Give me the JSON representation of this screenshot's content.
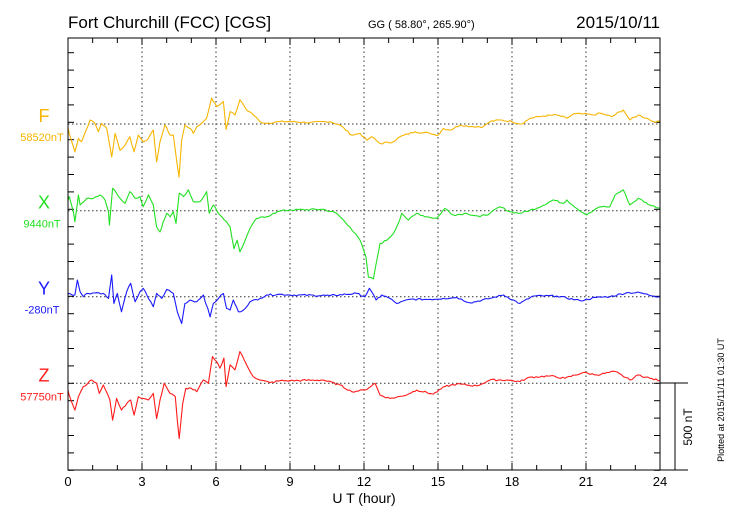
{
  "header": {
    "station": "Fort Churchill (FCC)  [CGS]",
    "coords": "GG ( 58.80°, 265.90°)",
    "date": "2015/10/11"
  },
  "footer": {
    "plotted": "Plotted at 2015/11/11 01:30 UT"
  },
  "chart_data": {
    "type": "line",
    "title": "Fort Churchill (FCC)  [CGS]",
    "xlabel": "U T (hour)",
    "xlim": [
      0,
      24
    ],
    "xticks": [
      "0",
      "3",
      "6",
      "9",
      "12",
      "15",
      "18",
      "21",
      "24"
    ],
    "grid": "dotted vertical lines every 3 hours, dotted baseline for each component",
    "scale_bar": {
      "label": "500 nT",
      "value_nT": 500
    },
    "series": [
      {
        "name": "F",
        "baseline_label": "58520nT",
        "color": "#f7b500",
        "points": [
          [
            0,
            -20
          ],
          [
            0.05,
            -54
          ],
          [
            0.28,
            -160
          ],
          [
            0.42,
            -83
          ],
          [
            0.55,
            -102
          ],
          [
            0.89,
            23
          ],
          [
            1.09,
            4
          ],
          [
            1.23,
            -44
          ],
          [
            1.36,
            4
          ],
          [
            1.57,
            -25
          ],
          [
            1.77,
            -189
          ],
          [
            1.91,
            -54
          ],
          [
            2.11,
            -151
          ],
          [
            2.31,
            -122
          ],
          [
            2.51,
            -73
          ],
          [
            2.68,
            -160
          ],
          [
            2.85,
            -64
          ],
          [
            3.05,
            -102
          ],
          [
            3.26,
            -83
          ],
          [
            3.46,
            -35
          ],
          [
            3.59,
            -218
          ],
          [
            3.73,
            -102
          ],
          [
            3.93,
            -6
          ],
          [
            4.14,
            -64
          ],
          [
            4.27,
            -64
          ],
          [
            4.41,
            -218
          ],
          [
            4.5,
            -305
          ],
          [
            4.61,
            -93
          ],
          [
            4.74,
            -6
          ],
          [
            4.95,
            -25
          ],
          [
            5.08,
            -54
          ],
          [
            5.22,
            -15
          ],
          [
            5.42,
            4
          ],
          [
            5.62,
            33
          ],
          [
            5.82,
            149
          ],
          [
            6.03,
            100
          ],
          [
            6.3,
            129
          ],
          [
            6.41,
            -31
          ],
          [
            6.57,
            71
          ],
          [
            6.77,
            52
          ],
          [
            6.97,
            139
          ],
          [
            7.24,
            81
          ],
          [
            7.45,
            62
          ],
          [
            7.78,
            14
          ],
          [
            8.05,
            4
          ],
          [
            8.6,
            14
          ],
          [
            9,
            14
          ],
          [
            9.81,
            8
          ],
          [
            10.62,
            14
          ],
          [
            11.03,
            -6
          ],
          [
            11.5,
            -64
          ],
          [
            11.84,
            -54
          ],
          [
            12.11,
            -93
          ],
          [
            12.31,
            -73
          ],
          [
            12.65,
            -112
          ],
          [
            13.19,
            -102
          ],
          [
            13.46,
            -73
          ],
          [
            14.07,
            -44
          ],
          [
            14.68,
            -54
          ],
          [
            15.01,
            -64
          ],
          [
            15.22,
            -25
          ],
          [
            15.49,
            -35
          ],
          [
            15.89,
            -6
          ],
          [
            16.43,
            -15
          ],
          [
            16.84,
            -15
          ],
          [
            17.11,
            14
          ],
          [
            17.51,
            23
          ],
          [
            17.99,
            14
          ],
          [
            18.39,
            0
          ],
          [
            18.73,
            33
          ],
          [
            19.27,
            46
          ],
          [
            19.81,
            52
          ],
          [
            20.22,
            33
          ],
          [
            20.49,
            58
          ],
          [
            20.89,
            58
          ],
          [
            21.3,
            52
          ],
          [
            21.57,
            62
          ],
          [
            22.04,
            42
          ],
          [
            22.51,
            81
          ],
          [
            22.78,
            23
          ],
          [
            23.12,
            52
          ],
          [
            23.46,
            33
          ],
          [
            23.73,
            14
          ],
          [
            24,
            14
          ]
        ]
      },
      {
        "name": "X",
        "baseline_label": "9440nT",
        "color": "#22e022",
        "points": [
          [
            0,
            60
          ],
          [
            0.05,
            81
          ],
          [
            0.22,
            -6
          ],
          [
            0.28,
            -64
          ],
          [
            0.42,
            91
          ],
          [
            0.49,
            33
          ],
          [
            0.76,
            71
          ],
          [
            1.03,
            71
          ],
          [
            1.3,
            91
          ],
          [
            1.5,
            62
          ],
          [
            1.64,
            -6
          ],
          [
            1.68,
            -83
          ],
          [
            1.81,
            129
          ],
          [
            1.97,
            100
          ],
          [
            2.11,
            71
          ],
          [
            2.31,
            42
          ],
          [
            2.51,
            110
          ],
          [
            2.72,
            71
          ],
          [
            2.92,
            81
          ],
          [
            3.05,
            23
          ],
          [
            3.26,
            91
          ],
          [
            3.46,
            33
          ],
          [
            3.59,
            -93
          ],
          [
            3.73,
            -122
          ],
          [
            3.86,
            -64
          ],
          [
            4.0,
            -15
          ],
          [
            4.14,
            -35
          ],
          [
            4.27,
            -6
          ],
          [
            4.38,
            -73
          ],
          [
            4.51,
            100
          ],
          [
            4.68,
            81
          ],
          [
            4.88,
            120
          ],
          [
            5.08,
            52
          ],
          [
            5.35,
            52
          ],
          [
            5.62,
            110
          ],
          [
            5.73,
            -15
          ],
          [
            5.89,
            33
          ],
          [
            6.16,
            -25
          ],
          [
            6.43,
            -64
          ],
          [
            6.57,
            -93
          ],
          [
            6.73,
            -218
          ],
          [
            6.86,
            -170
          ],
          [
            6.97,
            -237
          ],
          [
            7.18,
            -170
          ],
          [
            7.38,
            -102
          ],
          [
            7.65,
            -44
          ],
          [
            8.05,
            -35
          ],
          [
            8.32,
            -15
          ],
          [
            8.66,
            0
          ],
          [
            9,
            4
          ],
          [
            10.35,
            8
          ],
          [
            10.89,
            -15
          ],
          [
            11.43,
            -93
          ],
          [
            11.84,
            -170
          ],
          [
            12.08,
            -266
          ],
          [
            12.18,
            -382
          ],
          [
            12.38,
            -392
          ],
          [
            12.49,
            -305
          ],
          [
            12.65,
            -189
          ],
          [
            12.92,
            -170
          ],
          [
            13.19,
            -131
          ],
          [
            13.39,
            -73
          ],
          [
            13.53,
            -15
          ],
          [
            13.8,
            -54
          ],
          [
            14.14,
            -15
          ],
          [
            14.54,
            -35
          ],
          [
            14.95,
            -44
          ],
          [
            15.28,
            14
          ],
          [
            15.62,
            -25
          ],
          [
            16.16,
            -15
          ],
          [
            16.7,
            -35
          ],
          [
            17.11,
            -15
          ],
          [
            17.51,
            23
          ],
          [
            17.92,
            -6
          ],
          [
            18.32,
            -15
          ],
          [
            19,
            14
          ],
          [
            19.68,
            62
          ],
          [
            20.08,
            42
          ],
          [
            20.22,
            62
          ],
          [
            20.62,
            14
          ],
          [
            21.03,
            -25
          ],
          [
            21.57,
            23
          ],
          [
            21.97,
            23
          ],
          [
            22.18,
            91
          ],
          [
            22.51,
            120
          ],
          [
            22.78,
            33
          ],
          [
            23.12,
            71
          ],
          [
            23.59,
            33
          ],
          [
            24,
            14
          ]
        ]
      },
      {
        "name": "Y",
        "baseline_label": "-280nT",
        "color": "#1a1aff",
        "points": [
          [
            0,
            15
          ],
          [
            0.05,
            19
          ],
          [
            0.28,
            10
          ],
          [
            0.38,
            96
          ],
          [
            0.49,
            29
          ],
          [
            0.62,
            0
          ],
          [
            0.76,
            19
          ],
          [
            1.16,
            23
          ],
          [
            1.43,
            19
          ],
          [
            1.64,
            -10
          ],
          [
            1.77,
            125
          ],
          [
            1.86,
            -39
          ],
          [
            2,
            19
          ],
          [
            2.17,
            -87
          ],
          [
            2.38,
            29
          ],
          [
            2.54,
            77
          ],
          [
            2.72,
            -29
          ],
          [
            2.92,
            29
          ],
          [
            3.05,
            48
          ],
          [
            3.26,
            -10
          ],
          [
            3.46,
            -58
          ],
          [
            3.59,
            19
          ],
          [
            3.8,
            -10
          ],
          [
            4,
            42
          ],
          [
            4.27,
            19
          ],
          [
            4.43,
            -87
          ],
          [
            4.61,
            -154
          ],
          [
            4.74,
            -39
          ],
          [
            4.95,
            -19
          ],
          [
            5.22,
            -29
          ],
          [
            5.49,
            10
          ],
          [
            5.76,
            -116
          ],
          [
            5.89,
            -39
          ],
          [
            6.1,
            -10
          ],
          [
            6.3,
            19
          ],
          [
            6.43,
            -68
          ],
          [
            6.57,
            -77
          ],
          [
            6.7,
            -19
          ],
          [
            6.91,
            -87
          ],
          [
            7.11,
            -77
          ],
          [
            7.38,
            -29
          ],
          [
            7.78,
            -10
          ],
          [
            8.05,
            10
          ],
          [
            8.6,
            14
          ],
          [
            9,
            10
          ],
          [
            10.62,
            6
          ],
          [
            11.7,
            19
          ],
          [
            12.04,
            0
          ],
          [
            12.22,
            48
          ],
          [
            12.49,
            -19
          ],
          [
            12.72,
            10
          ],
          [
            13.05,
            -10
          ],
          [
            13.32,
            -39
          ],
          [
            13.86,
            -15
          ],
          [
            14.68,
            -15
          ],
          [
            15.22,
            -10
          ],
          [
            15.76,
            -4
          ],
          [
            16.3,
            -35
          ],
          [
            17.11,
            -10
          ],
          [
            17.65,
            10
          ],
          [
            18.32,
            -39
          ],
          [
            18.86,
            4
          ],
          [
            19.81,
            4
          ],
          [
            20.76,
            -23
          ],
          [
            21.43,
            -4
          ],
          [
            21.97,
            0
          ],
          [
            22.65,
            23
          ],
          [
            23.19,
            23
          ],
          [
            23.73,
            4
          ],
          [
            24,
            0
          ]
        ]
      },
      {
        "name": "Z",
        "baseline_label": "57750nT",
        "color": "#ff1a1a",
        "points": [
          [
            0,
            -40
          ],
          [
            0.05,
            -68
          ],
          [
            0.28,
            -154
          ],
          [
            0.42,
            -77
          ],
          [
            0.62,
            -19
          ],
          [
            0.96,
            19
          ],
          [
            1.16,
            0
          ],
          [
            1.27,
            -58
          ],
          [
            1.43,
            -10
          ],
          [
            1.7,
            -96
          ],
          [
            1.81,
            -212
          ],
          [
            1.97,
            -87
          ],
          [
            2.17,
            -154
          ],
          [
            2.38,
            -116
          ],
          [
            2.54,
            -96
          ],
          [
            2.68,
            -183
          ],
          [
            2.85,
            -77
          ],
          [
            3.05,
            -87
          ],
          [
            3.26,
            -96
          ],
          [
            3.46,
            -58
          ],
          [
            3.59,
            -203
          ],
          [
            3.73,
            -96
          ],
          [
            3.9,
            0
          ],
          [
            4.14,
            -58
          ],
          [
            4.35,
            -77
          ],
          [
            4.43,
            -212
          ],
          [
            4.51,
            -318
          ],
          [
            4.65,
            -116
          ],
          [
            4.78,
            -29
          ],
          [
            5,
            -29
          ],
          [
            5.22,
            -48
          ],
          [
            5.49,
            19
          ],
          [
            5.69,
            0
          ],
          [
            5.86,
            154
          ],
          [
            6.03,
            125
          ],
          [
            6.16,
            87
          ],
          [
            6.32,
            145
          ],
          [
            6.41,
            -19
          ],
          [
            6.57,
            106
          ],
          [
            6.77,
            77
          ],
          [
            6.97,
            183
          ],
          [
            7.24,
            106
          ],
          [
            7.51,
            39
          ],
          [
            7.78,
            19
          ],
          [
            8.19,
            4
          ],
          [
            8.6,
            15
          ],
          [
            9,
            15
          ],
          [
            10.35,
            19
          ],
          [
            11.03,
            -10
          ],
          [
            11.5,
            -48
          ],
          [
            12.04,
            -39
          ],
          [
            12.45,
            0
          ],
          [
            12.65,
            -68
          ],
          [
            13.05,
            -87
          ],
          [
            13.59,
            -73
          ],
          [
            14.14,
            -39
          ],
          [
            14.81,
            -62
          ],
          [
            15.28,
            -19
          ],
          [
            15.76,
            -4
          ],
          [
            16.57,
            -15
          ],
          [
            17.11,
            19
          ],
          [
            17.78,
            19
          ],
          [
            18.32,
            10
          ],
          [
            18.73,
            35
          ],
          [
            19.54,
            42
          ],
          [
            20.15,
            29
          ],
          [
            20.89,
            62
          ],
          [
            21.43,
            48
          ],
          [
            22.18,
            68
          ],
          [
            22.78,
            19
          ],
          [
            23.12,
            48
          ],
          [
            23.59,
            29
          ],
          [
            24,
            15
          ]
        ]
      }
    ]
  }
}
